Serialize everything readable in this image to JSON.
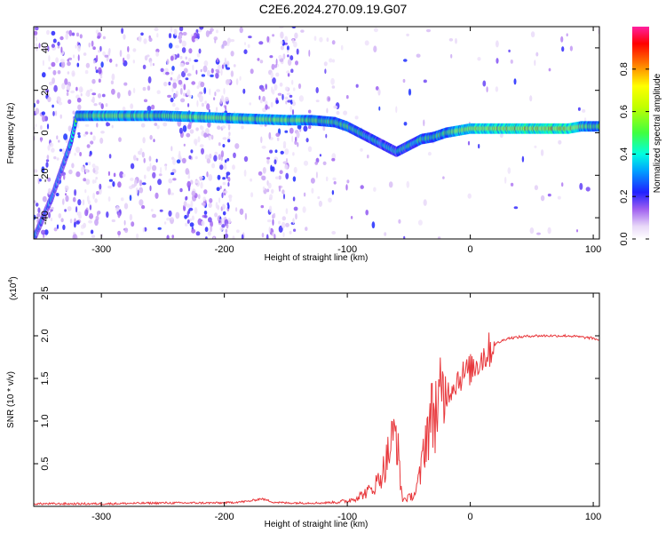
{
  "title": "C2E6.2024.270.09.19.G07",
  "chart_data": [
    {
      "type": "heatmap",
      "title": "C2E6.2024.270.09.19.G07",
      "xlabel": "Height of straight line (km)",
      "ylabel": "Frequency (Hz)",
      "xlim": [
        -355,
        105
      ],
      "ylim": [
        -50,
        50
      ],
      "xticks": [
        "-300",
        "-200",
        "-100",
        "0",
        "100"
      ],
      "xtick_values": [
        -300,
        -200,
        -100,
        0,
        100
      ],
      "yticks": [
        "-40",
        "-20",
        "0",
        "20",
        "40"
      ],
      "ytick_values": [
        -40,
        -20,
        0,
        20,
        40
      ],
      "colorbar": {
        "label": "Normalized spectral amplitude",
        "range": [
          0,
          1
        ],
        "ticks": [
          "0.0",
          "0.2",
          "0.4",
          "0.6",
          "0.8"
        ],
        "tick_values": [
          0.0,
          0.2,
          0.4,
          0.6,
          0.8
        ]
      },
      "ridge": {
        "x": [
          -355,
          -340,
          -325,
          -320,
          -300,
          -250,
          -200,
          -150,
          -130,
          -110,
          -100,
          -90,
          -80,
          -70,
          -60,
          -50,
          -40,
          -30,
          -20,
          -10,
          0,
          20,
          50,
          80,
          90,
          105
        ],
        "y": [
          -50,
          -30,
          -5,
          8,
          8,
          8,
          7,
          6,
          6,
          5,
          3,
          0,
          -3,
          -6,
          -9,
          -6,
          -3,
          -2,
          0,
          1,
          2,
          2,
          2,
          2,
          3,
          3
        ],
        "amplitude": [
          0.3,
          0.3,
          0.35,
          0.5,
          0.6,
          0.6,
          0.6,
          0.6,
          0.55,
          0.5,
          0.5,
          0.45,
          0.45,
          0.4,
          0.4,
          0.45,
          0.5,
          0.5,
          0.55,
          0.6,
          0.7,
          0.75,
          0.78,
          0.75,
          0.6,
          0.5
        ]
      }
    },
    {
      "type": "line",
      "xlabel": "Height of straight line (km)",
      "ylabel": "SNR (10 * v/v)",
      "yscale_label": "(x10",
      "yscale_exp": "4",
      "yscale_close": ")",
      "xlim": [
        -355,
        105
      ],
      "ylim": [
        0,
        2.5
      ],
      "xticks": [
        "-300",
        "-200",
        "-100",
        "0",
        "100"
      ],
      "xtick_values": [
        -300,
        -200,
        -100,
        0,
        100
      ],
      "yticks": [
        "0.5",
        "1.0",
        "1.5",
        "2.0",
        "2.5"
      ],
      "ytick_values": [
        0.5,
        1.0,
        1.5,
        2.0,
        2.5
      ],
      "series": [
        {
          "color": "#e8383c",
          "x": [
            -355,
            -300,
            -250,
            -200,
            -180,
            -170,
            -160,
            -150,
            -120,
            -100,
            -90,
            -80,
            -75,
            -70,
            -65,
            -60,
            -57,
            -55,
            -50,
            -45,
            -40,
            -38,
            -35,
            -30,
            -25,
            -20,
            -15,
            -10,
            -5,
            0,
            10,
            20,
            30,
            50,
            80,
            100,
            105
          ],
          "y": [
            0.03,
            0.03,
            0.04,
            0.04,
            0.06,
            0.09,
            0.05,
            0.04,
            0.04,
            0.06,
            0.12,
            0.2,
            0.3,
            0.45,
            0.7,
            0.9,
            0.3,
            0.08,
            0.1,
            0.15,
            0.4,
            0.7,
            0.9,
            1.1,
            1.2,
            1.3,
            1.4,
            1.5,
            1.55,
            1.6,
            1.75,
            1.9,
            1.97,
            2.0,
            2.0,
            1.97,
            1.95
          ]
        }
      ]
    }
  ]
}
